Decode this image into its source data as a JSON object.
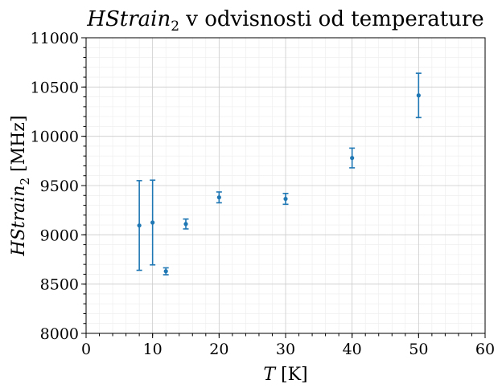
{
  "chart_data": {
    "type": "scatter",
    "title_main": "HStrain",
    "title_sub": "2",
    "title_rest": " v odvisnosti od temperature",
    "ylabel_main": "HStrain",
    "ylabel_sub": "2",
    "ylabel_unit": " [MHz]",
    "xlabel_main": "T",
    "xlabel_unit": " [K]",
    "xlim": [
      0,
      60
    ],
    "ylim": [
      8000,
      11000
    ],
    "xticks": [
      0,
      10,
      20,
      30,
      40,
      50,
      60
    ],
    "yticks": [
      8000,
      8500,
      9000,
      9500,
      10000,
      10500,
      11000
    ],
    "grid": true,
    "color": "#1f77b4",
    "series": [
      {
        "x": [
          8,
          10,
          12,
          15,
          20,
          30,
          40,
          50
        ],
        "y": [
          9095,
          9125,
          8630,
          9110,
          9380,
          9365,
          9780,
          10415
        ],
        "yerr": [
          455,
          430,
          35,
          50,
          55,
          55,
          100,
          225
        ]
      }
    ]
  }
}
